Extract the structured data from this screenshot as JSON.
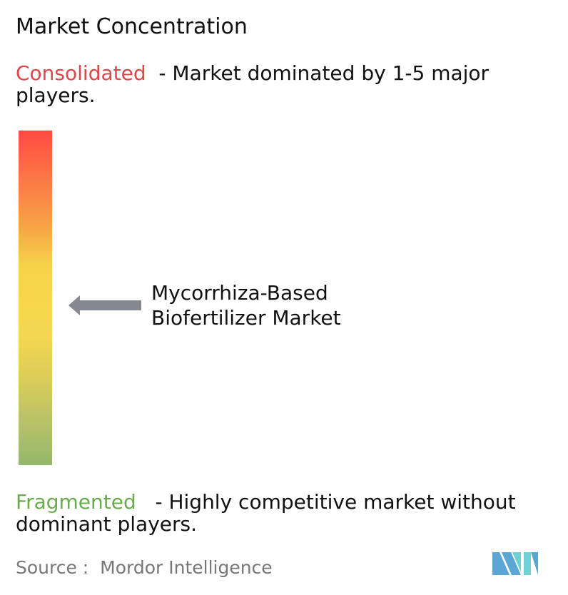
{
  "title": "Market Concentration",
  "consolidated": {
    "label": "Consolidated",
    "description": "  - Market dominated by 1-5 major players.",
    "color": "#e0454a"
  },
  "fragmented": {
    "label": "Fragmented",
    "description": "   - Highly competitive market without dominant players.",
    "color": "#6aab4d"
  },
  "market": {
    "line1": "Mycorrhiza-Based",
    "line2": "Biofertilizer Market"
  },
  "source": "Source :  Mordor Intelligence",
  "logo": {
    "text": "Mordor Intelligence",
    "colors": [
      "#5aa7d6",
      "#6fd0d6"
    ]
  }
}
